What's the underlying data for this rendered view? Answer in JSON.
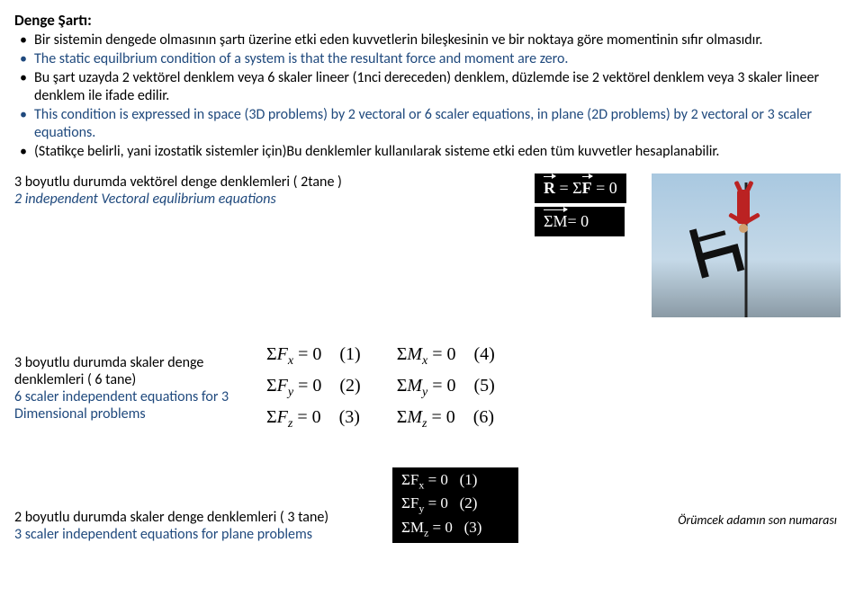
{
  "title": "Denge Şartı:",
  "bullets": [
    {
      "text": "Bir sistemin dengede olmasının şartı üzerine etki eden kuvvetlerin bileşkesinin ve bir noktaya göre momentinin sıfır olmasıdır.",
      "color": "#000000"
    },
    {
      "text": "The static equilbrium condition of a system is that the resultant force and moment are zero.",
      "color": "#1f497d"
    },
    {
      "text": "Bu şart uzayda  2 vektörel denklem veya 6 skaler lineer  (1nci dereceden) denklem, düzlemde ise  2 vektörel denklem veya 3 skaler lineer  denklem ile ifade edilir.",
      "color": "#000000"
    },
    {
      "text": "This condition is expressed in space (3D problems) by 2 vectoral or 6 scaler equations, in plane (2D problems) by 2 vectoral or 3 scaler equations.",
      "color": "#1f497d"
    },
    {
      "text": "(Statikçe belirli, yani izostatik sistemler için)Bu denklemler kullanılarak sisteme etki eden tüm kuvvetler hesaplanabilir.",
      "color": "#000000"
    }
  ],
  "sec1": {
    "line1": "3 boyutlu durumda vektörel denge denklemleri ( 2tane )",
    "line2": "2 independent Vectoral equlibrium equations"
  },
  "vec_eq1_lhs_bold": "R",
  "vec_eq1_rhs_bold": "F",
  "vec_eq1": " = Σ",
  "vec_eq1_tail": " = 0",
  "vec_eq2_lhs": "ΣM",
  "vec_eq2_tail": "= 0",
  "sec2": {
    "line1": "3 boyutlu durumda skaler denge denklemleri ( 6 tane)",
    "line2": "6 scaler independent   equations for 3 Dimensional problems"
  },
  "scalar6_left": [
    {
      "sym": "F",
      "sub": "x",
      "n": "(1)"
    },
    {
      "sym": "F",
      "sub": "y",
      "n": "(2)"
    },
    {
      "sym": "F",
      "sub": "z",
      "n": "(3)"
    }
  ],
  "scalar6_right": [
    {
      "sym": "M",
      "sub": "x",
      "n": "(4)"
    },
    {
      "sym": "M",
      "sub": "y",
      "n": "(5)"
    },
    {
      "sym": "M",
      "sub": "z",
      "n": "(6)"
    }
  ],
  "caption": "Örümcek adamın son numarası",
  "sec3": {
    "line1": "2 boyutlu durumda skaler denge denklemleri ( 3 tane)",
    "line2": "3 scaler independent  equations for plane problems"
  },
  "scalar3": [
    {
      "sym": "F",
      "sub": "x",
      "n": "(1)"
    },
    {
      "sym": "F",
      "sub": "y",
      "n": "(2)"
    },
    {
      "sym": "M",
      "sub": "z",
      "n": "(3)"
    }
  ],
  "colors": {
    "blue": "#1f497d",
    "black": "#000000",
    "eq_bg": "#000000",
    "eq_fg": "#ffffff"
  }
}
